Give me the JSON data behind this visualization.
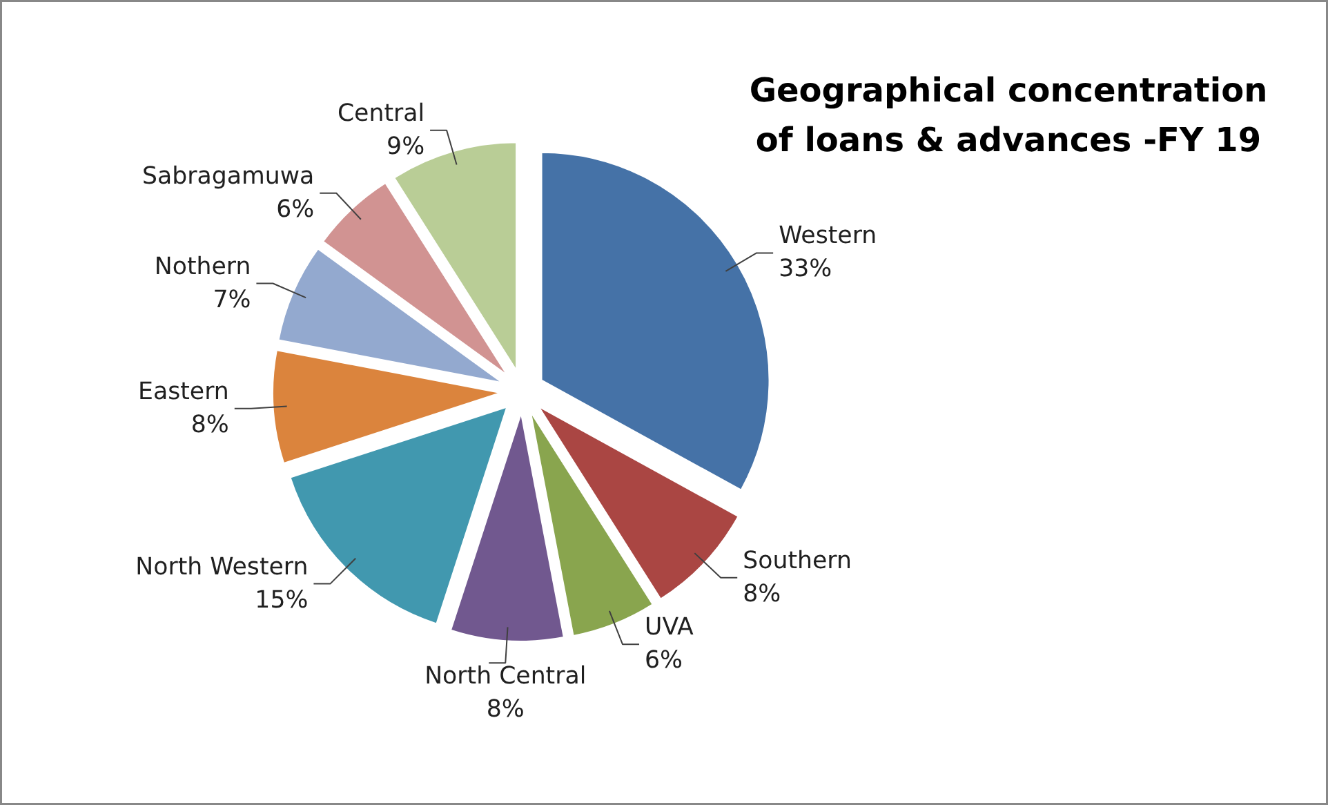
{
  "chart_data": {
    "type": "pie",
    "title": "Geographical concentration of loans & advances -FY 19",
    "categories": [
      "Western",
      "Southern",
      "UVA",
      "North Central",
      "North Western",
      "Eastern",
      "Nothern",
      "Sabragamuwa",
      "Central"
    ],
    "values": [
      33,
      8,
      6,
      8,
      15,
      8,
      7,
      6,
      9
    ],
    "colors": [
      "#4572a7",
      "#aa4643",
      "#89a54e",
      "#71588f",
      "#4198af",
      "#db843d",
      "#93a9cf",
      "#d19392",
      "#b9cd96"
    ],
    "legend": false,
    "value_labels": [
      "33%",
      "8%",
      "6%",
      "8%",
      "15%",
      "8%",
      "7%",
      "6%",
      "9%"
    ]
  }
}
